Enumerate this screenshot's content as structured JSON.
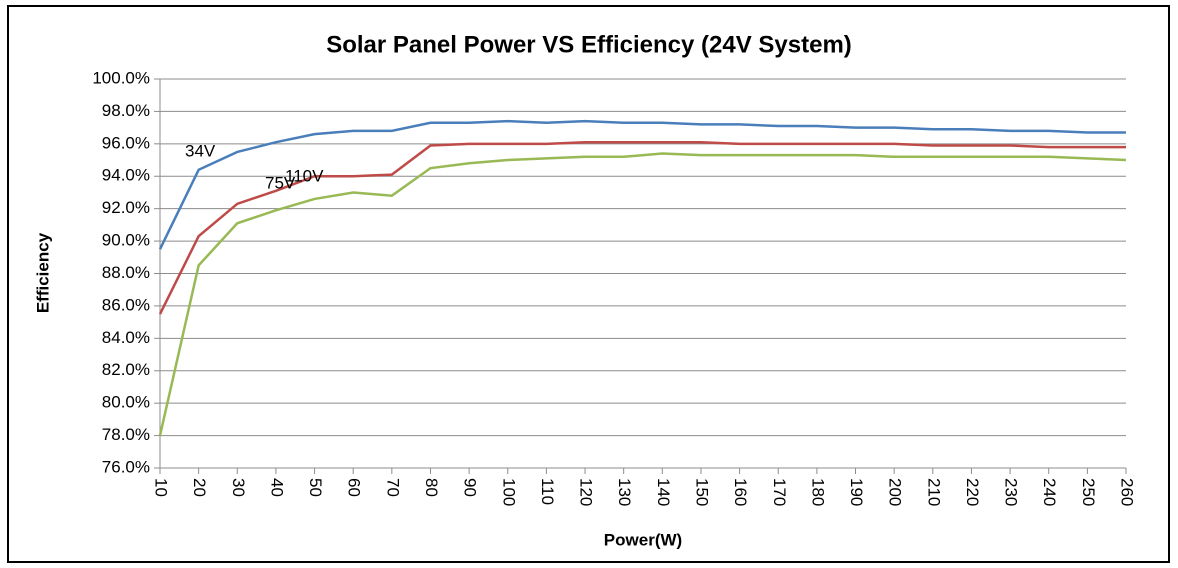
{
  "chart_data": {
    "type": "line",
    "title": "Solar Panel Power VS Efficiency (24V System)",
    "x_label": "Power(W)",
    "y_label": "Efficiency",
    "x": [
      10,
      20,
      30,
      40,
      50,
      60,
      70,
      80,
      90,
      100,
      110,
      120,
      130,
      140,
      150,
      160,
      170,
      180,
      190,
      200,
      210,
      220,
      230,
      240,
      250,
      260
    ],
    "xlim": [
      10,
      260
    ],
    "xticks": [
      10,
      20,
      30,
      40,
      50,
      60,
      70,
      80,
      90,
      100,
      110,
      120,
      130,
      140,
      150,
      160,
      170,
      180,
      190,
      200,
      210,
      220,
      230,
      240,
      250,
      260
    ],
    "ylim": [
      76,
      100
    ],
    "yticks": [
      {
        "value": 76,
        "label": "76.0%"
      },
      {
        "value": 78,
        "label": "78.0%"
      },
      {
        "value": 80,
        "label": "80.0%"
      },
      {
        "value": 82,
        "label": "82.0%"
      },
      {
        "value": 84,
        "label": "84.0%"
      },
      {
        "value": 86,
        "label": "86.0%"
      },
      {
        "value": 88,
        "label": "88.0%"
      },
      {
        "value": 90,
        "label": "90.0%"
      },
      {
        "value": 92,
        "label": "92.0%"
      },
      {
        "value": 94,
        "label": "94.0%"
      },
      {
        "value": 96,
        "label": "96.0%"
      },
      {
        "value": 98,
        "label": "98.0%"
      },
      {
        "value": 100,
        "label": "100.0%"
      }
    ],
    "grid": true,
    "series": [
      {
        "name": "34V",
        "color": "#4a7ebb",
        "values": [
          89.5,
          94.4,
          95.5,
          96.1,
          96.6,
          96.8,
          96.8,
          97.3,
          97.3,
          97.4,
          97.3,
          97.4,
          97.3,
          97.3,
          97.2,
          97.2,
          97.1,
          97.1,
          97.0,
          97.0,
          96.9,
          96.9,
          96.8,
          96.8,
          96.7,
          96.7
        ]
      },
      {
        "name": "75V",
        "color": "#be4b48",
        "values": [
          85.5,
          90.3,
          92.3,
          93.1,
          94.0,
          94.0,
          94.1,
          95.9,
          96.0,
          96.0,
          96.0,
          96.1,
          96.1,
          96.1,
          96.1,
          96.0,
          96.0,
          96.0,
          96.0,
          96.0,
          95.9,
          95.9,
          95.9,
          95.8,
          95.8,
          95.8
        ]
      },
      {
        "name": "110V",
        "color": "#98b954",
        "values": [
          78.0,
          88.5,
          91.1,
          91.9,
          92.6,
          93.0,
          92.8,
          94.5,
          94.8,
          95.0,
          95.1,
          95.2,
          95.2,
          95.4,
          95.3,
          95.3,
          95.3,
          95.3,
          95.3,
          95.2,
          95.2,
          95.2,
          95.2,
          95.2,
          95.1,
          95.0
        ]
      }
    ]
  }
}
